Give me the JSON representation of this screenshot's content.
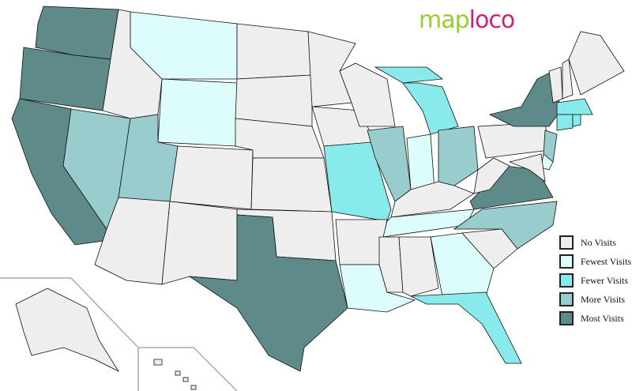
{
  "logo": {
    "part1": "map",
    "part2": "loco"
  },
  "legend": [
    {
      "label": "No Visits",
      "key": "none",
      "color": "#eeeeee"
    },
    {
      "label": "Fewest Visits",
      "key": "fewest",
      "color": "#ddfdfd"
    },
    {
      "label": "Fewer Visits",
      "key": "fewer",
      "color": "#88eaea"
    },
    {
      "label": "More Visits",
      "key": "more",
      "color": "#99cccc"
    },
    {
      "label": "Most Visits",
      "key": "most",
      "color": "#5f8a8a"
    }
  ],
  "states": {
    "WA": "most",
    "OR": "most",
    "CA": "most",
    "TX": "most",
    "NY": "most",
    "VA": "most",
    "NV": "more",
    "UT": "more",
    "IL": "more",
    "OH": "more",
    "NC": "more",
    "NJ": "more",
    "MI": "fewer",
    "MO": "fewer",
    "FL": "fewer",
    "MA": "fewer",
    "CT": "fewer",
    "RI": "fewer",
    "MT": "fewest",
    "WY": "fewest",
    "IN": "fewest",
    "TN": "fewest",
    "GA": "fewest",
    "LA": "fewest",
    "DE": "fewest",
    "ID": "none",
    "AZ": "none",
    "CO": "none",
    "NM": "none",
    "ND": "none",
    "SD": "none",
    "NE": "none",
    "KS": "none",
    "OK": "none",
    "MN": "none",
    "IA": "none",
    "AR": "none",
    "WI": "none",
    "KY": "none",
    "MS": "none",
    "AL": "none",
    "SC": "none",
    "WV": "none",
    "PA": "none",
    "MD": "none",
    "VT": "none",
    "NH": "none",
    "ME": "none",
    "AK": "none",
    "HI": "none"
  }
}
